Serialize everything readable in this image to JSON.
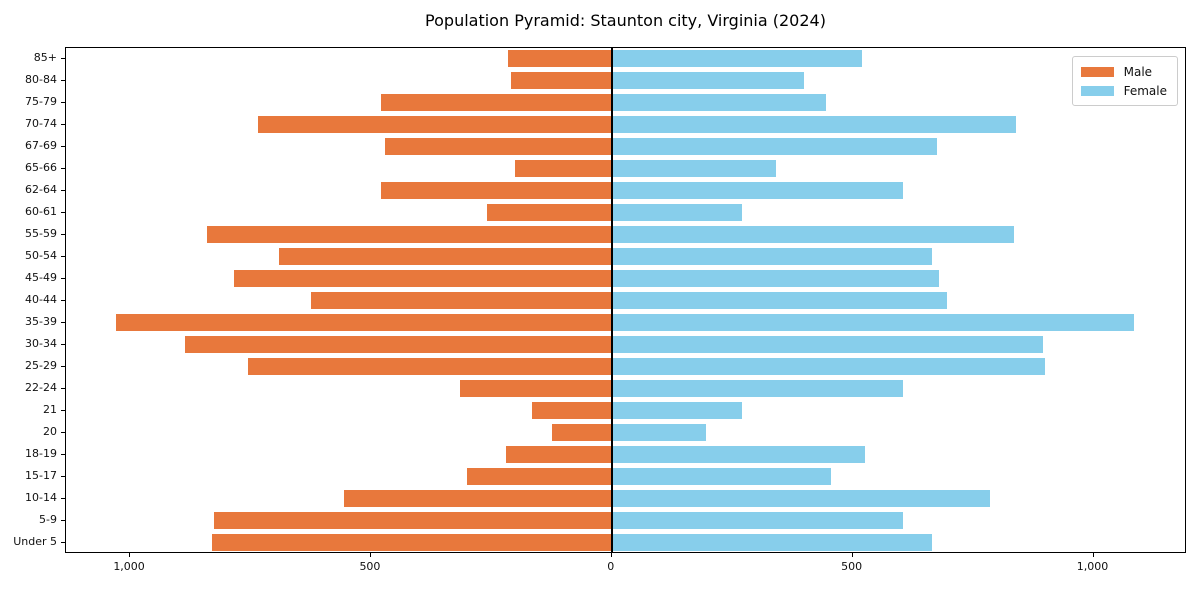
{
  "chart_data": {
    "type": "bar",
    "orientation": "horizontal",
    "subtype": "population-pyramid",
    "title": "Population Pyramid: Staunton city, Virginia (2024)",
    "categories_top_to_bottom": [
      "85+",
      "80-84",
      "75-79",
      "70-74",
      "67-69",
      "65-66",
      "62-64",
      "60-61",
      "55-59",
      "50-54",
      "45-49",
      "40-44",
      "35-39",
      "30-34",
      "25-29",
      "22-24",
      "21",
      "20",
      "18-19",
      "15-17",
      "10-14",
      "5-9",
      "Under 5"
    ],
    "series": [
      {
        "name": "Male",
        "side": "left",
        "color": "#e8783c",
        "values": [
          215,
          210,
          480,
          735,
          470,
          200,
          480,
          260,
          840,
          690,
          785,
          625,
          1030,
          885,
          755,
          315,
          165,
          125,
          220,
          300,
          555,
          825,
          830
        ]
      },
      {
        "name": "Female",
        "side": "right",
        "color": "#87ceeb",
        "values": [
          520,
          400,
          445,
          840,
          675,
          340,
          605,
          270,
          835,
          665,
          680,
          695,
          1085,
          895,
          900,
          605,
          270,
          195,
          525,
          455,
          785,
          605,
          665
        ]
      }
    ],
    "x_axis": {
      "tick_values": [
        -1000,
        -500,
        0,
        500,
        1000
      ],
      "tick_labels": [
        "1,000",
        "500",
        "0",
        "500",
        "1,000"
      ],
      "xlim": [
        -1133,
        1194
      ]
    },
    "ylabel": "",
    "xlabel": "",
    "grid": false,
    "zero_line_color": "#000000",
    "legend": {
      "position": "top-right",
      "entries": [
        "Male",
        "Female"
      ]
    }
  }
}
